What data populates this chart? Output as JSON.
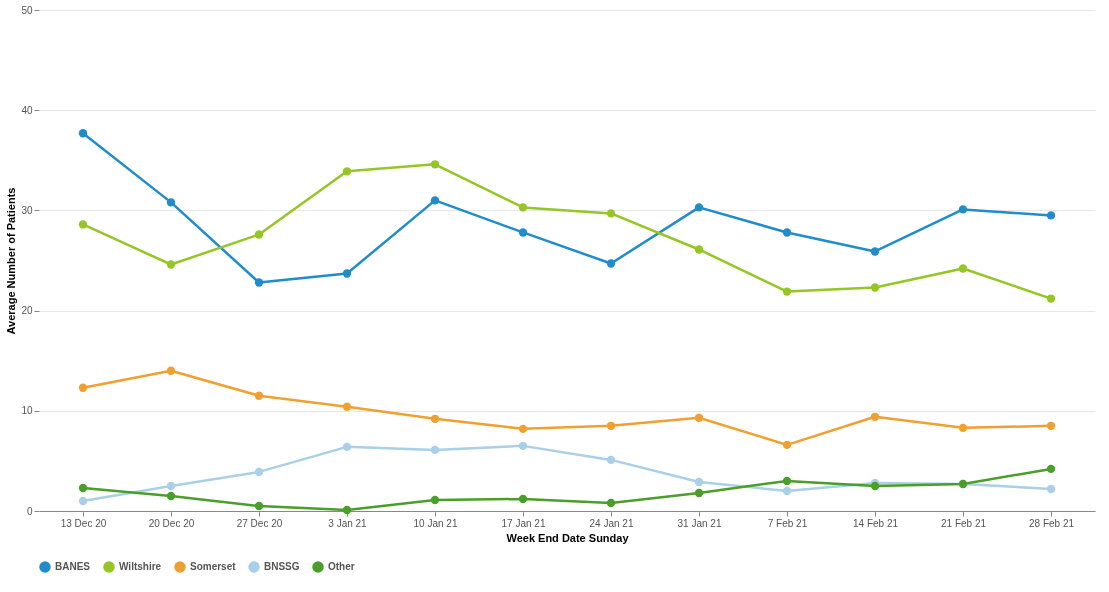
{
  "chart_data": {
    "type": "line",
    "xlabel": "Week End Date Sunday",
    "ylabel": "Average Number of Patients",
    "categories": [
      "13 Dec 20",
      "20 Dec 20",
      "27 Dec 20",
      "3 Jan 21",
      "10 Jan 21",
      "17 Jan 21",
      "24 Jan 21",
      "31 Jan 21",
      "7 Feb 21",
      "14 Feb 21",
      "21 Feb 21",
      "28 Feb 21"
    ],
    "series": [
      {
        "name": "BANES",
        "color": "#1f8ccc",
        "values": [
          37.7,
          30.8,
          22.8,
          23.7,
          31.0,
          27.8,
          24.7,
          30.3,
          27.8,
          25.9,
          30.1,
          29.5
        ]
      },
      {
        "name": "Wiltshire",
        "color": "#95c623",
        "values": [
          28.6,
          24.6,
          27.6,
          33.9,
          34.6,
          30.3,
          29.7,
          26.1,
          21.9,
          22.3,
          24.2,
          21.2
        ]
      },
      {
        "name": "Somerset",
        "color": "#f0a030",
        "values": [
          12.3,
          14.0,
          11.5,
          10.4,
          9.2,
          8.2,
          8.5,
          9.3,
          6.6,
          9.4,
          8.3,
          8.5
        ]
      },
      {
        "name": "BNSSG",
        "color": "#a9cfe9",
        "values": [
          1.0,
          2.5,
          3.9,
          6.4,
          6.1,
          6.5,
          5.1,
          2.9,
          2.0,
          2.8,
          2.7,
          2.2
        ]
      },
      {
        "name": "Other",
        "color": "#4a9e2a",
        "values": [
          2.3,
          1.5,
          0.5,
          0.1,
          1.1,
          1.2,
          0.8,
          1.8,
          3.0,
          2.5,
          2.7,
          4.2
        ]
      }
    ],
    "ylim": [
      0,
      50
    ],
    "yticks": [
      0,
      10,
      20,
      30,
      40,
      50
    ],
    "grid": "y",
    "legend": "bottom",
    "marker": "circle",
    "line_style": "solid"
  }
}
